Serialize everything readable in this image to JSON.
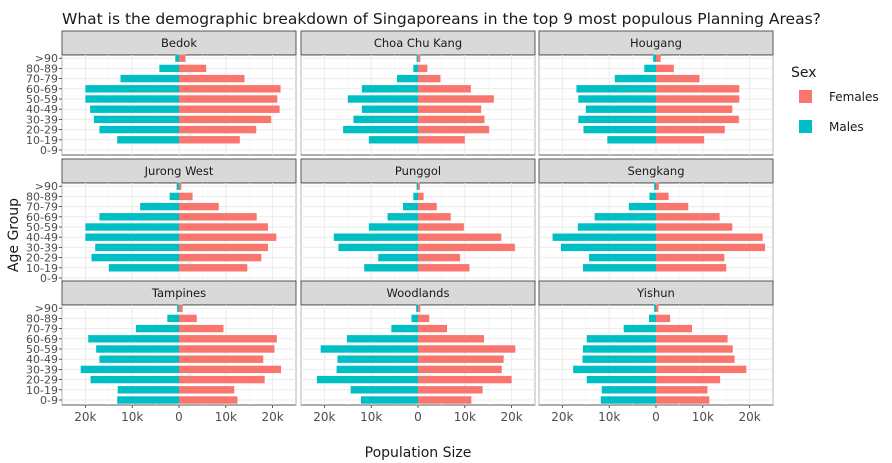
{
  "chart_data": {
    "type": "bar",
    "title": "What is the demographic breakdown of Singaporeans in the top 9 most populous Planning Areas?",
    "xlabel": "Population Size",
    "ylabel": "Age Group",
    "legend": {
      "title": "Sex",
      "placement": "right",
      "entries": [
        {
          "name": "Females",
          "color": "#F8766D"
        },
        {
          "name": "Males",
          "color": "#00BFC4"
        }
      ]
    },
    "categories": [
      "0-9",
      "10-19",
      "20-29",
      "30-39",
      "40-49",
      "50-59",
      "60-69",
      "70-79",
      "80-89",
      ">90"
    ],
    "x_tick_labels": [
      "20k",
      "10k",
      "0",
      "10k",
      "20k"
    ],
    "xlim": [
      -25000,
      25000
    ],
    "grid": true,
    "panels": [
      {
        "area": "Bedok",
        "females": [
          null,
          13000,
          16500,
          19700,
          21500,
          21000,
          21700,
          14000,
          5800,
          1400
        ],
        "males": [
          null,
          13200,
          17000,
          18200,
          19000,
          20000,
          20000,
          12500,
          4200,
          800
        ]
      },
      {
        "area": "Choa Chu Kang",
        "females": [
          null,
          10000,
          15200,
          14200,
          13500,
          16200,
          11300,
          4800,
          2000,
          500
        ],
        "males": [
          null,
          10500,
          16000,
          13800,
          12000,
          15000,
          12000,
          4500,
          1000,
          300
        ]
      },
      {
        "area": "Hougang",
        "females": [
          null,
          10300,
          14700,
          17700,
          16300,
          17800,
          17800,
          9300,
          3800,
          1000
        ],
        "males": [
          null,
          10400,
          15500,
          16600,
          15000,
          16600,
          17000,
          8800,
          2500,
          600
        ]
      },
      {
        "area": "Jurong West",
        "females": [
          null,
          14600,
          17600,
          19000,
          20800,
          19000,
          16600,
          8500,
          2900,
          500
        ],
        "males": [
          null,
          15000,
          18700,
          17900,
          20000,
          20000,
          17000,
          8300,
          2000,
          500
        ]
      },
      {
        "area": "Punggol",
        "females": [
          null,
          11000,
          9000,
          20700,
          17800,
          9800,
          7000,
          4000,
          1200,
          400
        ],
        "males": [
          null,
          11500,
          8500,
          17000,
          18000,
          10500,
          6500,
          3200,
          1000,
          300
        ]
      },
      {
        "area": "Sengkang",
        "females": [
          null,
          15000,
          14600,
          23300,
          22800,
          16300,
          13600,
          6900,
          2700,
          600
        ],
        "males": [
          null,
          15600,
          14300,
          20300,
          22100,
          16700,
          13100,
          5800,
          1400,
          400
        ]
      },
      {
        "area": "Tampines",
        "females": [
          12500,
          11800,
          18300,
          21800,
          18000,
          20400,
          20900,
          9500,
          3800,
          800
        ],
        "males": [
          13200,
          13100,
          18900,
          21000,
          17000,
          17700,
          19400,
          9200,
          2500,
          400
        ]
      },
      {
        "area": "Woodlands",
        "females": [
          11400,
          13800,
          20000,
          17900,
          18300,
          20800,
          14100,
          6200,
          2400,
          500
        ],
        "males": [
          12200,
          14400,
          21600,
          17400,
          17200,
          20800,
          15200,
          5700,
          1400,
          400
        ]
      },
      {
        "area": "Yishun",
        "females": [
          11400,
          11000,
          13700,
          19300,
          16800,
          16400,
          15300,
          7700,
          3000,
          500
        ],
        "males": [
          11800,
          11600,
          14800,
          17700,
          15700,
          15600,
          14800,
          6900,
          1500,
          400
        ]
      }
    ]
  }
}
